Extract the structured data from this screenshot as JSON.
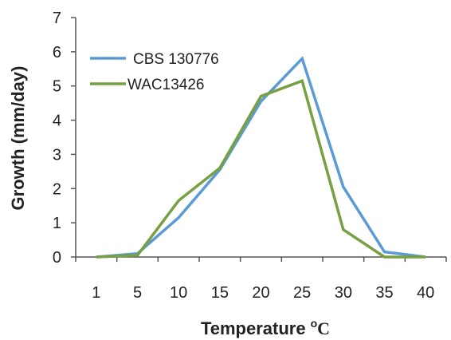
{
  "chart_data": {
    "type": "line",
    "x": [
      "1",
      "5",
      "10",
      "15",
      "20",
      "25",
      "30",
      "35",
      "40"
    ],
    "ylim": [
      0,
      7
    ],
    "yticks": [
      "0",
      "1",
      "2",
      "3",
      "4",
      "5",
      "6",
      "7"
    ],
    "xlabel": "Temperature",
    "xlabel_unit_sup": "o",
    "xlabel_unit": "C",
    "ylabel": "Growth (mm/day)",
    "grid": false,
    "legend_position": "top-left",
    "series": [
      {
        "name": "CBS 130776",
        "color": "#5b9bd5",
        "values": [
          0,
          0.1,
          1.15,
          2.55,
          4.55,
          5.8,
          2.05,
          0.15,
          0
        ]
      },
      {
        "name": "WAC13426",
        "color": "#77a043",
        "values": [
          0,
          0.05,
          1.65,
          2.6,
          4.7,
          5.15,
          0.8,
          0,
          0
        ]
      }
    ]
  }
}
